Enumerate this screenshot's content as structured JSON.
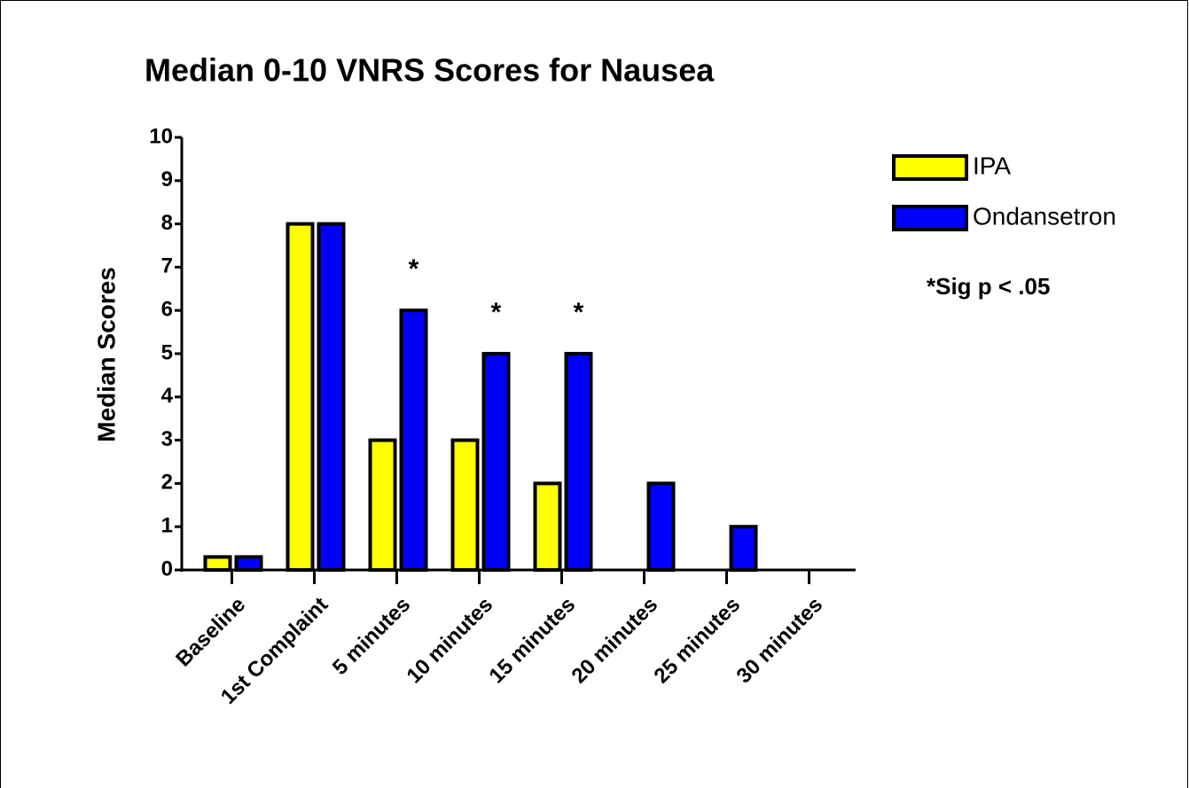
{
  "chart_data": {
    "type": "bar",
    "title": "Median 0-10 VNRS Scores for Nausea",
    "y_label": "Median Scores",
    "categories": [
      "Baseline",
      "1st Complaint",
      "5 minutes",
      "10 minutes",
      "15 minutes",
      "20 minutes",
      "25 minutes",
      "30 minutes"
    ],
    "series": [
      {
        "name": "IPA",
        "color": "#ffff00",
        "values": [
          0.3,
          8,
          3,
          3,
          2,
          0,
          0,
          0
        ]
      },
      {
        "name": "Ondansetron",
        "color": "#0000ff",
        "values": [
          0.3,
          8,
          6,
          5,
          5,
          2,
          1,
          0
        ]
      }
    ],
    "annotations": [
      {
        "text": "*",
        "category": "5 minutes"
      },
      {
        "text": "*",
        "category": "10 minutes"
      },
      {
        "text": "*",
        "category": "15 minutes"
      }
    ],
    "note": "*Sig p < .05",
    "ylim": [
      0,
      10
    ],
    "yticks": [
      0,
      1,
      2,
      3,
      4,
      5,
      6,
      7,
      8,
      9,
      10
    ],
    "legend": "top-right"
  }
}
